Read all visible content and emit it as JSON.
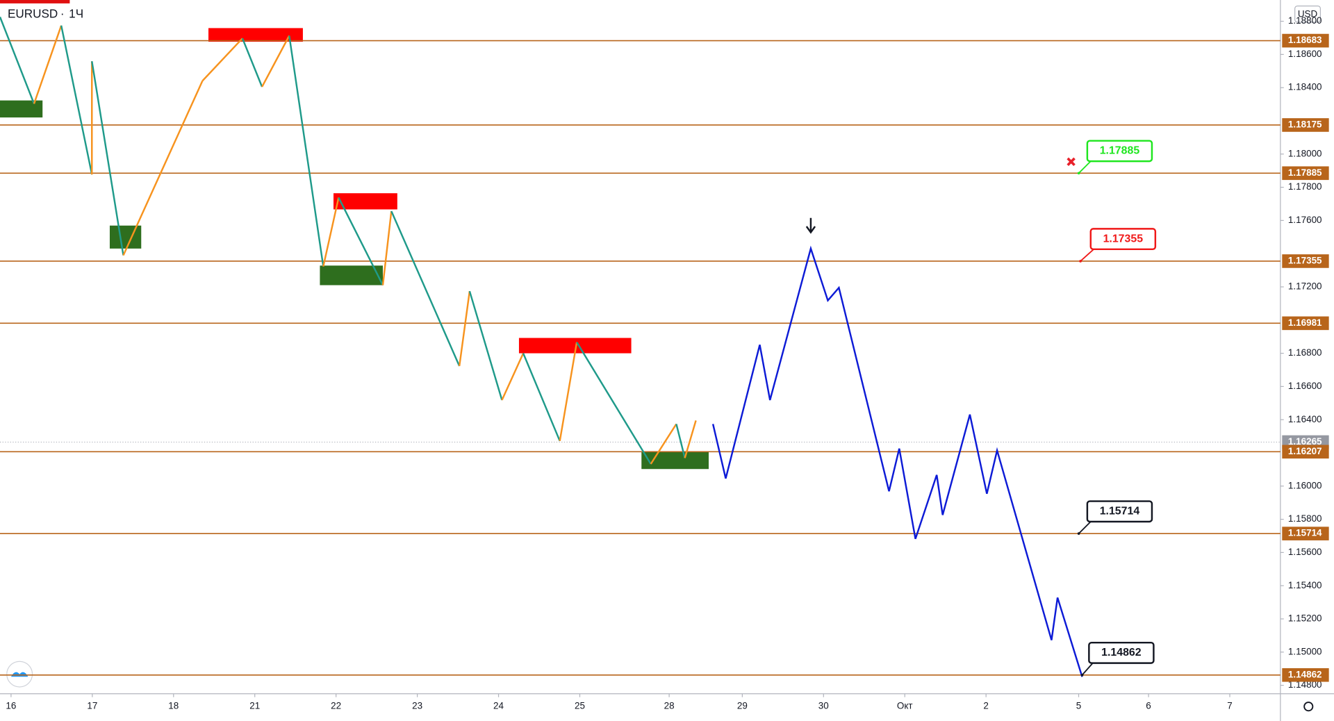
{
  "chart_data": {
    "type": "line",
    "title": "EURUSD",
    "subtitle": "1Ч",
    "currency": "USD",
    "xlim": [
      -0.136,
      15.623
    ],
    "ylim": [
      1.14749,
      1.18928
    ],
    "xticks": [
      {
        "value": 0,
        "label": "16"
      },
      {
        "value": 1,
        "label": "17"
      },
      {
        "value": 2,
        "label": "18"
      },
      {
        "value": 3,
        "label": "21"
      },
      {
        "value": 4,
        "label": "22"
      },
      {
        "value": 5,
        "label": "23"
      },
      {
        "value": 6,
        "label": "24"
      },
      {
        "value": 7,
        "label": "25"
      },
      {
        "value": 8.1,
        "label": "28"
      },
      {
        "value": 9,
        "label": "29"
      },
      {
        "value": 10,
        "label": "30"
      },
      {
        "value": 11,
        "label": "Окт"
      },
      {
        "value": 12,
        "label": "2"
      },
      {
        "value": 13.14,
        "label": "5"
      },
      {
        "value": 14,
        "label": "6"
      },
      {
        "value": 15,
        "label": "7"
      }
    ],
    "yticks": [
      {
        "value": 1.188,
        "label": "1.18800"
      },
      {
        "value": 1.186,
        "label": "1.18600"
      },
      {
        "value": 1.184,
        "label": "1.18400"
      },
      {
        "value": 1.18,
        "label": "1.18000"
      },
      {
        "value": 1.178,
        "label": "1.17800"
      },
      {
        "value": 1.176,
        "label": "1.17600"
      },
      {
        "value": 1.172,
        "label": "1.17200"
      },
      {
        "value": 1.168,
        "label": "1.16800"
      },
      {
        "value": 1.166,
        "label": "1.16600"
      },
      {
        "value": 1.164,
        "label": "1.16400"
      },
      {
        "value": 1.16,
        "label": "1.16000"
      },
      {
        "value": 1.158,
        "label": "1.15800"
      },
      {
        "value": 1.156,
        "label": "1.15600"
      },
      {
        "value": 1.154,
        "label": "1.15400"
      },
      {
        "value": 1.152,
        "label": "1.15200"
      },
      {
        "value": 1.15,
        "label": "1.15000"
      },
      {
        "value": 1.148,
        "label": "1.14800"
      }
    ],
    "levels": [
      1.18683,
      1.18175,
      1.17885,
      1.17355,
      1.16981,
      1.16207,
      1.15714,
      1.14862
    ],
    "level_color": "#b8651b",
    "last_price": 1.16265,
    "callouts": [
      {
        "value": 1.17885,
        "color": "#1ee61e"
      },
      {
        "value": 1.17355,
        "color": "#f01818"
      },
      {
        "value": 1.15714,
        "color": "#131722"
      },
      {
        "value": 1.14862,
        "color": "#131722"
      }
    ],
    "series": [
      {
        "up_color": "#f7931e",
        "down_color": "#1f9a8a",
        "x": [
          -0.136,
          0.283,
          0.618,
          0.995,
          0.995,
          1.382,
          2.356,
          2.848,
          3.089,
          3.424,
          3.843,
          4.032,
          4.576,
          4.681,
          5.518,
          5.644,
          6.042,
          6.304,
          6.754,
          6.963,
          7.874,
          8.188,
          8.293,
          8.429
        ],
        "values": [
          1.18826,
          1.18303,
          1.18774,
          1.17877,
          1.18559,
          1.1739,
          1.18441,
          1.18697,
          1.18405,
          1.18713,
          1.17323,
          1.17738,
          1.1721,
          1.17656,
          1.16723,
          1.17174,
          1.16518,
          1.168,
          1.16272,
          1.16867,
          1.16133,
          1.16374,
          1.16169,
          1.16395
        ]
      },
      {
        "color": "#0d1bd6",
        "x": [
          8.639,
          8.796,
          9.215,
          9.341,
          9.843,
          10.053,
          10.189,
          10.806,
          10.932,
          11.131,
          11.393,
          11.466,
          11.801,
          12.01,
          12.136,
          12.806,
          12.88,
          13.183
        ],
        "values": [
          1.16374,
          1.16046,
          1.16851,
          1.16518,
          1.17431,
          1.17118,
          1.17195,
          1.15969,
          1.16226,
          1.15682,
          1.16067,
          1.15826,
          1.16431,
          1.15954,
          1.16215,
          1.15072,
          1.15328,
          1.14851
        ]
      }
    ]
  }
}
